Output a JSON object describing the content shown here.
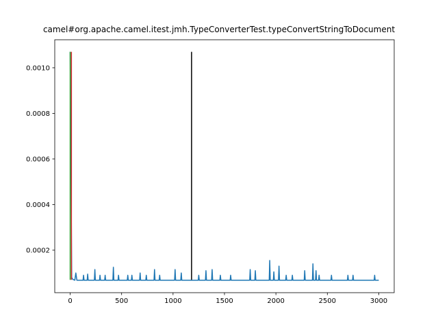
{
  "chart_data": {
    "type": "line",
    "title": "camel#org.apache.camel.itest.jmh.TypeConverterTest.typeConvertStringToDocument",
    "xlim": [
      -150,
      3150
    ],
    "ylim": [
      1.35e-05,
      0.001123
    ],
    "xticks": [
      0,
      500,
      1000,
      1500,
      2000,
      2500,
      3000
    ],
    "yticks": [
      0.0002,
      0.0004,
      0.0006,
      0.0008,
      {
        "value": 0.001,
        "label": "0.0010"
      }
    ],
    "series": [
      {
        "color": "#1f77b4",
        "x": [
          0,
          15,
          25,
          45,
          55,
          65,
          125,
          130,
          135,
          165,
          170,
          175,
          235,
          240,
          245,
          285,
          290,
          295,
          335,
          340,
          345,
          415,
          420,
          425,
          465,
          470,
          475,
          555,
          560,
          565,
          595,
          600,
          605,
          675,
          680,
          685,
          735,
          740,
          745,
          815,
          820,
          825,
          865,
          870,
          875,
          1015,
          1020,
          1025,
          1075,
          1080,
          1085,
          1245,
          1250,
          1255,
          1315,
          1320,
          1325,
          1375,
          1380,
          1385,
          1455,
          1460,
          1465,
          1555,
          1560,
          1565,
          1745,
          1750,
          1755,
          1795,
          1800,
          1805,
          1935,
          1940,
          1945,
          1975,
          1980,
          1985,
          2025,
          2030,
          2035,
          2095,
          2100,
          2105,
          2155,
          2160,
          2165,
          2275,
          2280,
          2285,
          2355,
          2360,
          2365,
          2385,
          2390,
          2395,
          2415,
          2420,
          2425,
          2535,
          2540,
          2545,
          2695,
          2700,
          2705,
          2745,
          2750,
          2755,
          2955,
          2960,
          2965,
          3000
        ],
        "values": [
          0.00107,
          8e-05,
          7.2e-05,
          6.8e-05,
          0.0001,
          6.8e-05,
          6.8e-05,
          9e-05,
          6.8e-05,
          6.8e-05,
          9.5e-05,
          6.8e-05,
          6.8e-05,
          0.000115,
          6.8e-05,
          6.8e-05,
          9e-05,
          6.8e-05,
          6.8e-05,
          9e-05,
          6.8e-05,
          6.8e-05,
          0.000125,
          6.8e-05,
          6.8e-05,
          9e-05,
          6.8e-05,
          6.8e-05,
          9e-05,
          6.8e-05,
          6.8e-05,
          9e-05,
          6.8e-05,
          6.8e-05,
          0.0001,
          6.8e-05,
          6.8e-05,
          9e-05,
          6.8e-05,
          6.8e-05,
          0.000115,
          6.8e-05,
          6.8e-05,
          9e-05,
          6.8e-05,
          6.8e-05,
          0.000115,
          6.8e-05,
          6.8e-05,
          0.0001,
          6.8e-05,
          6.8e-05,
          9e-05,
          6.8e-05,
          6.8e-05,
          0.00011,
          6.8e-05,
          6.8e-05,
          0.000115,
          6.8e-05,
          6.8e-05,
          9e-05,
          6.8e-05,
          6.8e-05,
          9e-05,
          6.8e-05,
          6.8e-05,
          0.000115,
          6.8e-05,
          6.8e-05,
          0.00011,
          6.8e-05,
          6.8e-05,
          0.000155,
          6.8e-05,
          6.8e-05,
          0.000105,
          6.8e-05,
          6.8e-05,
          0.00013,
          6.8e-05,
          6.8e-05,
          9e-05,
          6.8e-05,
          6.8e-05,
          9e-05,
          6.8e-05,
          6.8e-05,
          0.00011,
          6.8e-05,
          6.8e-05,
          0.00014,
          6.8e-05,
          6.8e-05,
          0.00011,
          6.8e-05,
          6.8e-05,
          9e-05,
          6.8e-05,
          6.8e-05,
          9e-05,
          6.8e-05,
          6.8e-05,
          9e-05,
          6.8e-05,
          6.8e-05,
          9e-05,
          6.8e-05,
          6.8e-05,
          9e-05,
          6.8e-05,
          6.8e-05
        ]
      },
      {
        "color": "#2ca02c",
        "x": [
          0,
          0
        ],
        "values": [
          0.00107,
          7e-05
        ]
      },
      {
        "color": "#d62728",
        "x": [
          12,
          12
        ],
        "values": [
          0.00107,
          7e-05
        ]
      },
      {
        "color": "#000000",
        "x": [
          1180,
          1180
        ],
        "values": [
          7e-05,
          0.00107
        ]
      }
    ]
  }
}
